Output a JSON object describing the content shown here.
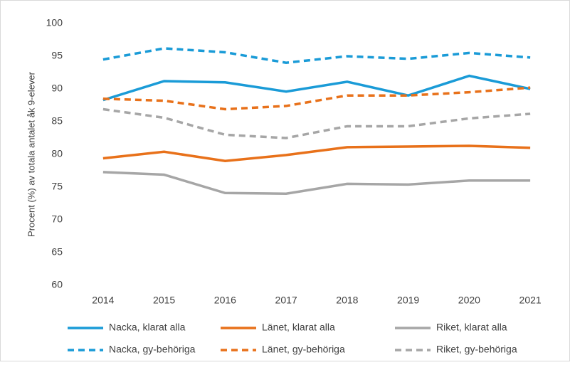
{
  "chart_data": {
    "type": "line",
    "y_label": "Procent (%) av totala antalet åk 9-elever",
    "categories": [
      "2014",
      "2015",
      "2016",
      "2017",
      "2018",
      "2019",
      "2020",
      "2021"
    ],
    "series": [
      {
        "name": "Nacka, klarat alla",
        "color": "#1a9bd7",
        "style": "solid",
        "values": [
          88.3,
          91.2,
          91.0,
          89.6,
          91.1,
          89.0,
          92.0,
          90.0
        ]
      },
      {
        "name": "Länet, klarat alla",
        "color": "#e8711a",
        "style": "solid",
        "values": [
          79.4,
          80.4,
          79.0,
          79.9,
          81.1,
          81.2,
          81.3,
          81.0
        ]
      },
      {
        "name": "Riket, klarat alla",
        "color": "#a6a6a6",
        "style": "solid",
        "values": [
          77.3,
          76.9,
          74.1,
          74.0,
          75.5,
          75.4,
          76.0,
          76.0
        ]
      },
      {
        "name": "Nacka, gy-behöriga",
        "color": "#1a9bd7",
        "style": "dashed",
        "values": [
          94.5,
          96.2,
          95.6,
          94.0,
          95.0,
          94.6,
          95.5,
          94.8
        ]
      },
      {
        "name": "Länet, gy-behöriga",
        "color": "#e8711a",
        "style": "dashed",
        "values": [
          88.5,
          88.2,
          86.9,
          87.4,
          89.0,
          89.0,
          89.5,
          90.2
        ]
      },
      {
        "name": "Riket, gy-behöriga",
        "color": "#a6a6a6",
        "style": "dashed",
        "values": [
          86.9,
          85.6,
          83.0,
          82.5,
          84.3,
          84.3,
          85.5,
          86.2
        ]
      }
    ],
    "ylim": [
      60,
      100
    ],
    "yticks": [
      60,
      65,
      70,
      75,
      80,
      85,
      90,
      95,
      100
    ],
    "grid": false,
    "legend": "bottom"
  }
}
